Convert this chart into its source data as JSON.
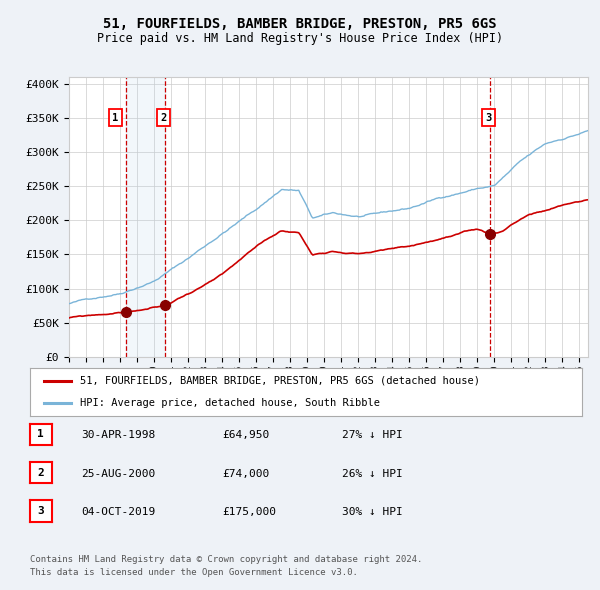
{
  "title_line1": "51, FOURFIELDS, BAMBER BRIDGE, PRESTON, PR5 6GS",
  "title_line2": "Price paid vs. HM Land Registry's House Price Index (HPI)",
  "legend_line1": "51, FOURFIELDS, BAMBER BRIDGE, PRESTON, PR5 6GS (detached house)",
  "legend_line2": "HPI: Average price, detached house, South Ribble",
  "footer_line1": "Contains HM Land Registry data © Crown copyright and database right 2024.",
  "footer_line2": "This data is licensed under the Open Government Licence v3.0.",
  "sale_points": [
    {
      "label": "1",
      "date": "30-APR-1998",
      "price": 64950,
      "price_str": "£64,950",
      "hpi_pct": "27% ↓ HPI",
      "x": 1998.33
    },
    {
      "label": "2",
      "date": "25-AUG-2000",
      "price": 74000,
      "price_str": "£74,000",
      "hpi_pct": "26% ↓ HPI",
      "x": 2000.65
    },
    {
      "label": "3",
      "date": "04-OCT-2019",
      "price": 175000,
      "price_str": "£175,000",
      "hpi_pct": "30% ↓ HPI",
      "x": 2019.75
    }
  ],
  "hpi_color": "#7ab4d8",
  "price_color": "#cc0000",
  "sale_dot_color": "#880000",
  "vline_color": "#cc0000",
  "shade_xmin": 1998.33,
  "shade_xmax": 2000.65,
  "background_color": "#eef2f7",
  "plot_bg_color": "#ffffff",
  "grid_color": "#cccccc",
  "xmin": 1995.0,
  "xmax": 2025.5,
  "ymin": 0,
  "ymax": 410000
}
